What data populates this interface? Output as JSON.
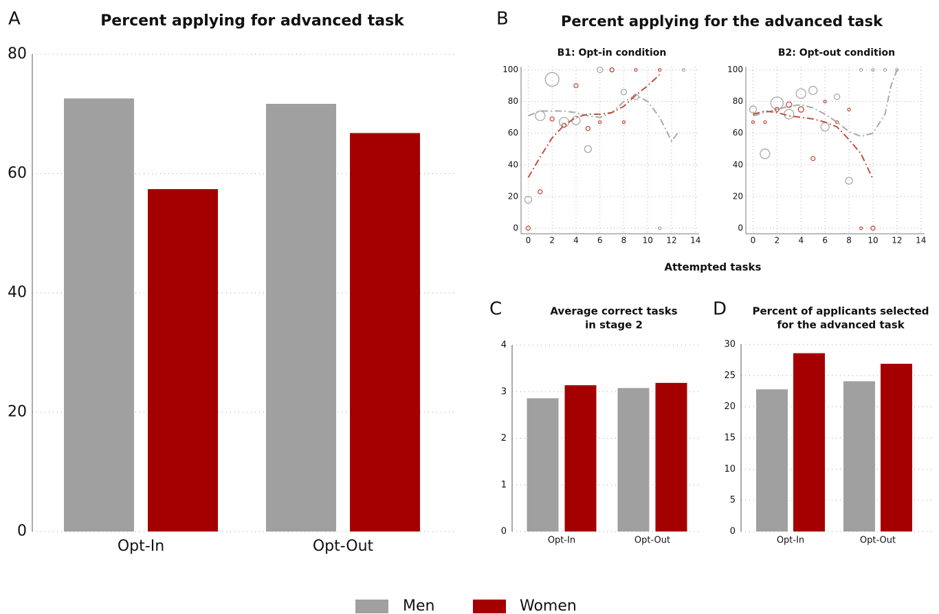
{
  "panel_b": {
    "label": "B",
    "title": "Percent applying for the advanced task",
    "xlabel": "Attempted tasks"
  },
  "chart_data": [
    {
      "type": "bar",
      "label": "A",
      "title": [
        "Percent applying for advanced task"
      ],
      "categories": [
        "Opt-In",
        "Opt-Out"
      ],
      "series": [
        {
          "name": "Men",
          "color": "#a0a0a0",
          "values": [
            72.6,
            71.7
          ]
        },
        {
          "name": "Women",
          "color": "#a50000",
          "values": [
            57.4,
            66.8
          ]
        }
      ],
      "ylim": [
        0,
        80
      ],
      "yticks": [
        0,
        20,
        40,
        60,
        80
      ],
      "grid": true
    },
    {
      "type": "scatter",
      "title": "B1: Opt-in condition",
      "xlim": [
        -0.6,
        14.3
      ],
      "xticks": [
        0,
        2,
        4,
        6,
        8,
        10,
        12,
        14
      ],
      "ylim": [
        -3.5,
        102
      ],
      "yticks": [
        0,
        20,
        40,
        60,
        80,
        100
      ],
      "grid": true,
      "series": [
        {
          "color": "#a8a8a8",
          "x": [
            0,
            1,
            2,
            3,
            4,
            5,
            6,
            7,
            8,
            9,
            11,
            13
          ],
          "values": [
            18,
            71,
            94,
            67,
            68,
            50,
            100,
            100,
            86,
            83,
            0,
            100
          ],
          "sizes": [
            5,
            7,
            10,
            7,
            6,
            5,
            4,
            3,
            4,
            4,
            2,
            2
          ]
        },
        {
          "color": "#c0503c",
          "x": [
            0,
            1,
            2,
            3,
            4,
            5,
            6,
            7,
            8,
            9,
            11
          ],
          "values": [
            0,
            23,
            69,
            65,
            90,
            63,
            67,
            100,
            67,
            100,
            100
          ],
          "sizes": [
            3,
            3,
            3,
            3,
            3,
            3,
            2,
            3,
            2,
            2,
            2
          ]
        }
      ],
      "fits": [
        {
          "color": "#a8a8a8",
          "x": [
            0,
            1,
            2,
            3,
            4,
            5,
            6,
            7,
            8,
            9,
            10,
            11,
            12,
            12.5
          ],
          "values": [
            71,
            74,
            74,
            74,
            73,
            71,
            70,
            73,
            80,
            84,
            80,
            70,
            55,
            60
          ]
        },
        {
          "color": "#c0503c",
          "x": [
            0,
            1,
            2,
            3,
            4,
            5,
            6,
            7,
            8,
            9,
            10,
            11
          ],
          "values": [
            32,
            45,
            57,
            65,
            70,
            72,
            72,
            73,
            77,
            84,
            90,
            97
          ]
        }
      ]
    },
    {
      "type": "scatter",
      "title": "B2: Opt-out condition",
      "xlim": [
        -0.6,
        14.3
      ],
      "xticks": [
        0,
        2,
        4,
        6,
        8,
        10,
        12,
        14
      ],
      "ylim": [
        -3.5,
        102
      ],
      "yticks": [
        0,
        20,
        40,
        60,
        80,
        100
      ],
      "grid": true,
      "series": [
        {
          "color": "#a8a8a8",
          "x": [
            0,
            1,
            2,
            3,
            4,
            5,
            6,
            7,
            8,
            9,
            10,
            11,
            12
          ],
          "values": [
            75,
            47,
            79,
            72,
            85,
            87,
            64,
            83,
            30,
            100,
            100,
            100,
            100
          ],
          "sizes": [
            5,
            7,
            9,
            7,
            7,
            6,
            6,
            4,
            5,
            2,
            2,
            2,
            2
          ]
        },
        {
          "color": "#c0503c",
          "x": [
            0,
            1,
            2,
            3,
            4,
            5,
            6,
            7,
            8,
            9,
            10
          ],
          "values": [
            67,
            67,
            75,
            78,
            75,
            44,
            80,
            67,
            75,
            0,
            0
          ],
          "sizes": [
            2,
            2,
            3,
            4,
            4,
            3,
            2,
            2,
            2,
            2,
            3
          ]
        }
      ],
      "fits": [
        {
          "color": "#a8a8a8",
          "x": [
            0,
            1,
            2,
            3,
            4,
            5,
            6,
            7,
            8,
            9,
            10,
            11,
            11.5,
            12
          ],
          "values": [
            71,
            73,
            75,
            77,
            78,
            76,
            72,
            67,
            61,
            58,
            60,
            72,
            90,
            100
          ]
        },
        {
          "color": "#c0503c",
          "x": [
            0,
            1,
            2,
            3,
            4,
            5,
            6,
            7,
            8,
            9,
            10
          ],
          "values": [
            72,
            74,
            73,
            71,
            70,
            69,
            67,
            64,
            56,
            47,
            31
          ]
        }
      ]
    },
    {
      "type": "bar",
      "label": "C",
      "title": [
        "Average correct tasks",
        "in stage 2"
      ],
      "categories": [
        "Opt-In",
        "Opt-Out"
      ],
      "series": [
        {
          "color": "#a0a0a0",
          "values": [
            2.86,
            3.08
          ]
        },
        {
          "color": "#a50000",
          "values": [
            3.14,
            3.19
          ]
        }
      ],
      "ylim": [
        0,
        4
      ],
      "yticks": [
        0,
        1,
        2,
        3,
        4
      ],
      "grid": true
    },
    {
      "type": "bar",
      "label": "D",
      "title": [
        "Percent of applicants selected",
        "for the advanced task"
      ],
      "categories": [
        "Opt-In",
        "Opt-Out"
      ],
      "series": [
        {
          "color": "#a0a0a0",
          "values": [
            22.8,
            24.1
          ]
        },
        {
          "color": "#a50000",
          "values": [
            28.6,
            26.9
          ]
        }
      ],
      "ylim": [
        0,
        30
      ],
      "yticks": [
        0,
        5,
        10,
        15,
        20,
        25,
        30
      ],
      "grid": true
    }
  ]
}
